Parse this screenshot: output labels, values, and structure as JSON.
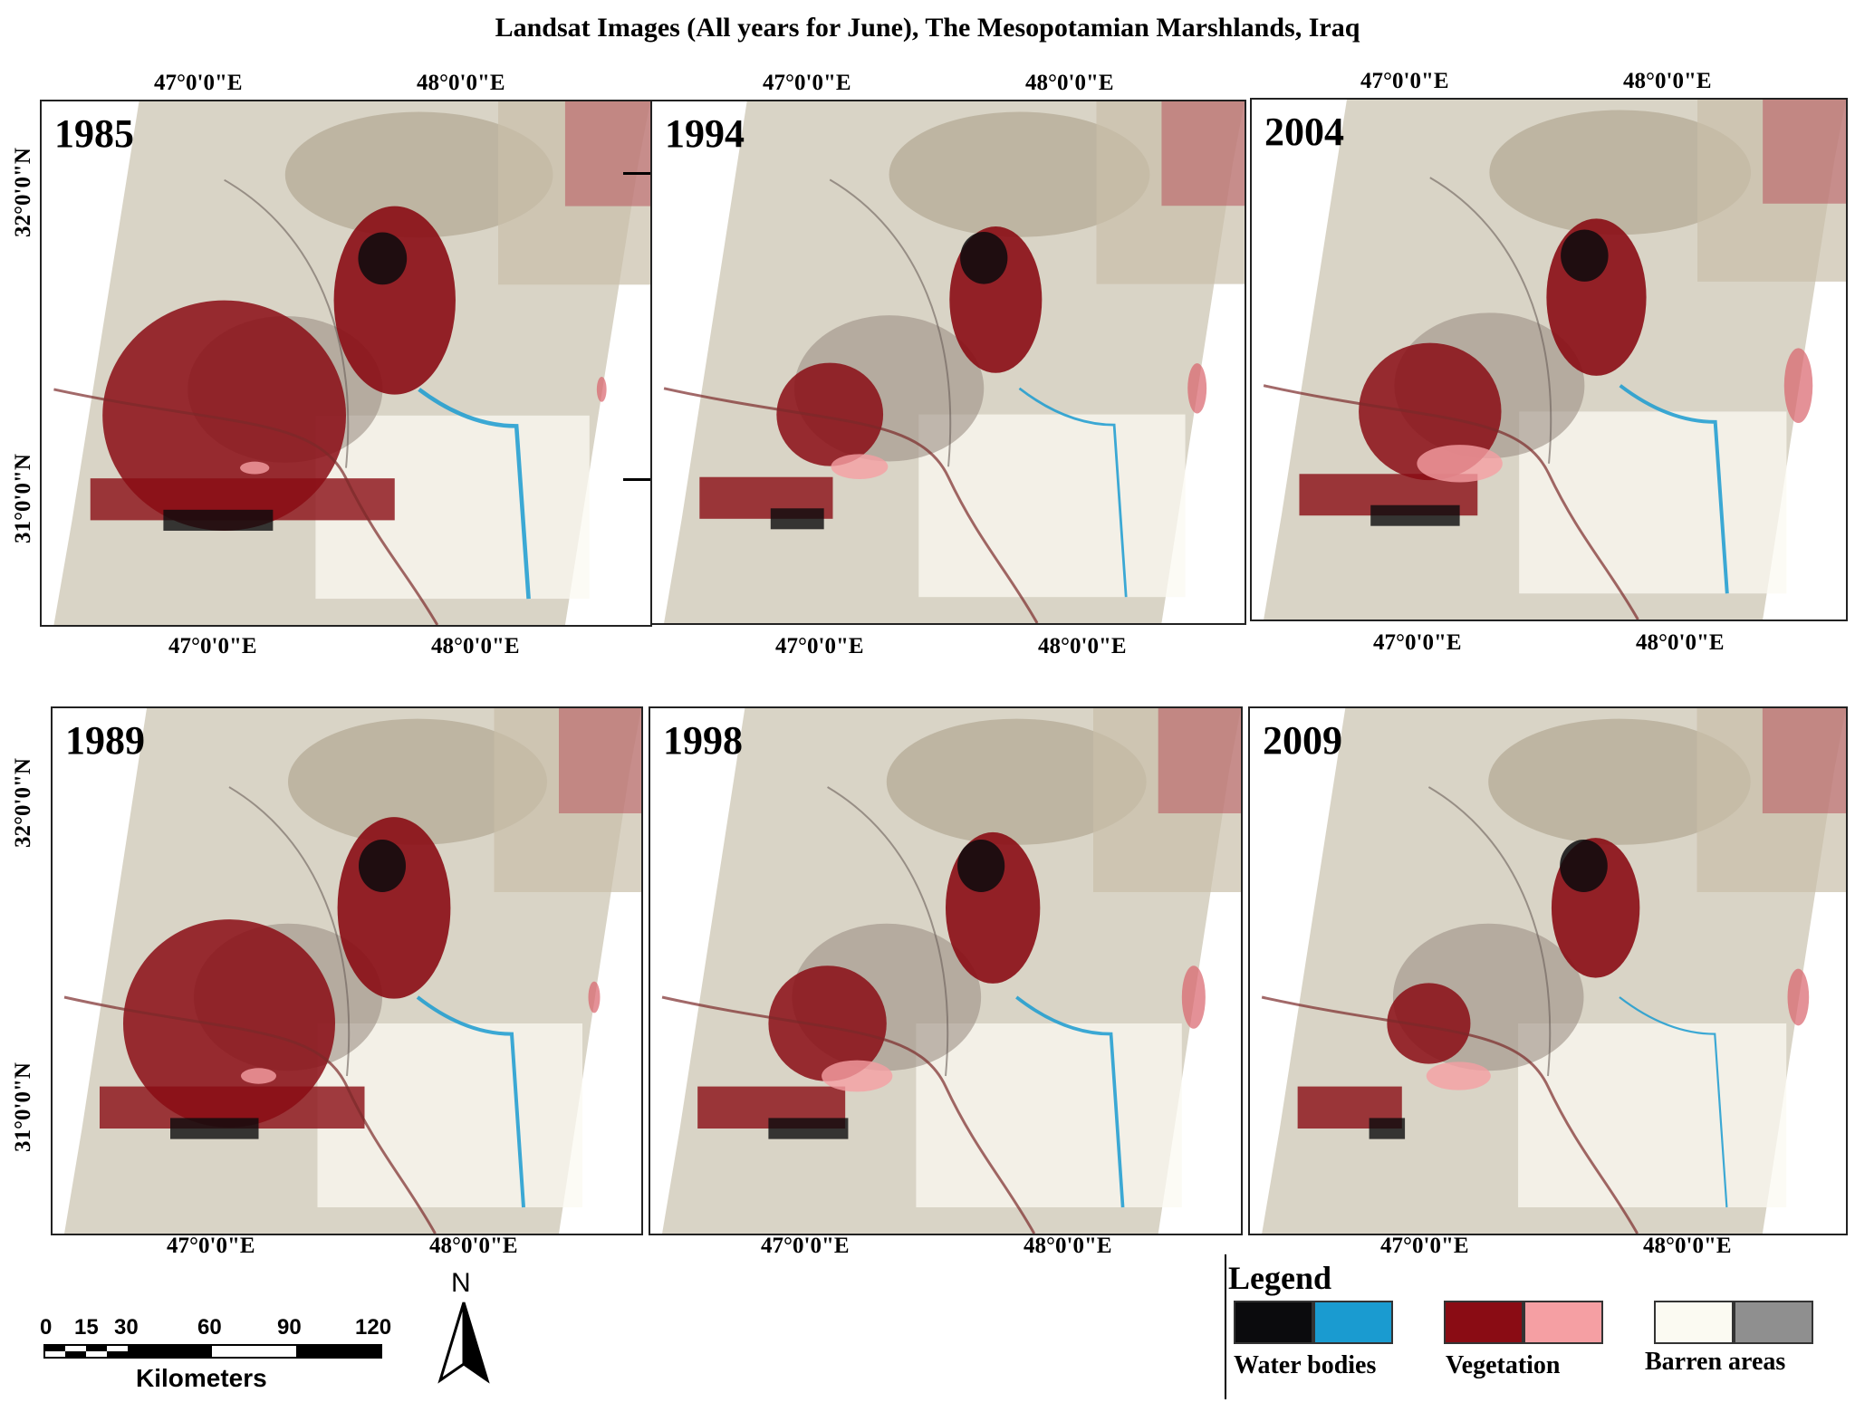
{
  "title": "Landsat Images (All years for June), The Mesopotamian Marshlands, Iraq",
  "panels": [
    {
      "year": "1985",
      "lon_top_1": "47°0'0\"E",
      "lon_top_2": "48°0'0\"E",
      "lon_bottom_1": "47°0'0\"E",
      "lon_bottom_2": "48°0'0\"E",
      "lat_1": "32°0'0\"N",
      "lat_2": "31°0'0\"N"
    },
    {
      "year": "1994",
      "lon_top_1": "47°0'0\"E",
      "lon_top_2": "48°0'0\"E",
      "lon_bottom_1": "47°0'0\"E",
      "lon_bottom_2": "48°0'0\"E"
    },
    {
      "year": "2004",
      "lon_top_1": "47°0'0\"E",
      "lon_top_2": "48°0'0\"E",
      "lon_bottom_1": "47°0'0\"E",
      "lon_bottom_2": "48°0'0\"E"
    },
    {
      "year": "1989",
      "lon_bottom_1": "47°0'0\"E",
      "lon_bottom_2": "48°0'0\"E",
      "lat_1": "32°0'0\"N",
      "lat_2": "31°0'0\"N"
    },
    {
      "year": "1998",
      "lon_bottom_1": "47°0'0\"E",
      "lon_bottom_2": "48°0'0\"E"
    },
    {
      "year": "2009",
      "lon_bottom_1": "47°0'0\"E",
      "lon_bottom_2": "48°0'0\"E"
    }
  ],
  "legend": {
    "title": "Legend",
    "water_label": "Water bodies",
    "vegetation_label": "Vegetation",
    "barren_label": "Barren areas",
    "colors": {
      "water_dark": "#0b0b0d",
      "water_light": "#1a9bd0",
      "veg_dark": "#8a0c14",
      "veg_light": "#f59fa3",
      "barren_light": "#fbfaf2",
      "barren_dark": "#8f8f8f"
    }
  },
  "scale_bar": {
    "ticks": [
      "0",
      "15",
      "30",
      "60",
      "90",
      "120"
    ],
    "unit": "Kilometers"
  },
  "north_arrow": {
    "label": "N",
    "icon": "north-arrow-icon"
  }
}
